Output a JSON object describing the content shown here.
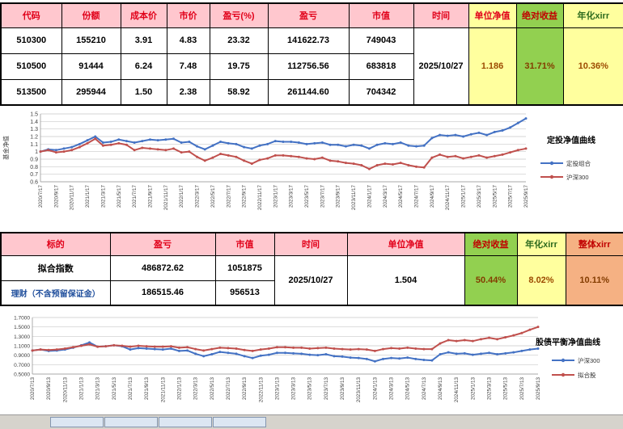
{
  "colors": {
    "header_pink_bg": "#FFC7CE",
    "header_red_text": "#E10019",
    "yellow_bg": "#FFFF9E",
    "green_bg": "#92D050",
    "orange_bg": "#F5B183",
    "series_blue": "#4472C4",
    "series_red": "#C0504D"
  },
  "table1": {
    "headers": [
      "代码",
      "份额",
      "成本价",
      "市价",
      "盈亏(%)",
      "盈亏",
      "市值",
      "时间",
      "单位净值",
      "绝对收益",
      "年化xirr"
    ],
    "rows": [
      {
        "code": "510300",
        "shares": "155210",
        "cost": "3.91",
        "price": "4.83",
        "pl_pct": "23.32",
        "pl": "141622.73",
        "value": "749043"
      },
      {
        "code": "510500",
        "shares": "91444",
        "cost": "6.24",
        "price": "7.48",
        "pl_pct": "19.75",
        "pl": "112756.56",
        "value": "683818"
      },
      {
        "code": "513500",
        "shares": "295944",
        "cost": "1.50",
        "price": "2.38",
        "pl_pct": "58.92",
        "pl": "261144.60",
        "value": "704342"
      }
    ],
    "merged": {
      "time": "2025/10/27",
      "unit_nav": "1.186",
      "abs_return": "31.71%",
      "xirr": "10.36%"
    }
  },
  "table2": {
    "headers": [
      "标的",
      "盈亏",
      "市值",
      "时间",
      "单位净值",
      "绝对收益",
      "年化xirr",
      "整体xirr"
    ],
    "rows": [
      {
        "name": "拟合指数",
        "pl": "486872.62",
        "value": "1051875"
      },
      {
        "name": "理财（不含预留保证金）",
        "pl": "186515.46",
        "value": "956513"
      }
    ],
    "merged": {
      "time": "2025/10/27",
      "unit_nav": "1.504",
      "abs_return": "50.44%",
      "xirr": "8.02%",
      "overall_xirr": "10.11%"
    }
  },
  "chart_data": [
    {
      "type": "line",
      "title": "定投净值曲线",
      "ylabel": "基金净值",
      "ylim": [
        0.6,
        1.5
      ],
      "yticks": [
        "1.5",
        "1.4",
        "1.3",
        "1.2",
        "1.1",
        "1",
        "0.9",
        "0.8",
        "0.7",
        "0.6"
      ],
      "grid": true,
      "legend_position": "right",
      "x_labels": [
        "2020/7/17",
        "2020/9/17",
        "2020/11/17",
        "2021/1/17",
        "2021/3/17",
        "2021/5/17",
        "2021/7/17",
        "2021/9/17",
        "2021/11/17",
        "2022/1/17",
        "2022/3/17",
        "2022/5/17",
        "2022/7/17",
        "2022/9/17",
        "2022/11/17",
        "2023/1/17",
        "2023/3/17",
        "2023/5/17",
        "2023/7/17",
        "2023/9/17",
        "2023/11/17",
        "2024/1/17",
        "2024/3/17",
        "2024/5/17",
        "2024/7/17",
        "2024/9/17",
        "2024/11/17",
        "2025/1/17",
        "2025/3/17",
        "2025/5/17",
        "2025/7/17",
        "2025/9/17"
      ],
      "series": [
        {
          "name": "定投组合",
          "color": "#4472C4",
          "values": [
            1.0,
            1.03,
            1.02,
            1.04,
            1.06,
            1.1,
            1.15,
            1.2,
            1.12,
            1.13,
            1.16,
            1.14,
            1.12,
            1.14,
            1.16,
            1.15,
            1.16,
            1.17,
            1.12,
            1.13,
            1.07,
            1.03,
            1.08,
            1.13,
            1.11,
            1.1,
            1.06,
            1.04,
            1.08,
            1.1,
            1.14,
            1.13,
            1.13,
            1.12,
            1.1,
            1.11,
            1.12,
            1.09,
            1.09,
            1.07,
            1.09,
            1.08,
            1.04,
            1.09,
            1.11,
            1.1,
            1.12,
            1.08,
            1.07,
            1.08,
            1.18,
            1.22,
            1.21,
            1.22,
            1.2,
            1.23,
            1.25,
            1.22,
            1.26,
            1.28,
            1.32,
            1.38,
            1.44
          ]
        },
        {
          "name": "沪深300",
          "color": "#C0504D",
          "values": [
            1.0,
            1.02,
            0.99,
            1.0,
            1.02,
            1.06,
            1.11,
            1.17,
            1.08,
            1.09,
            1.11,
            1.09,
            1.02,
            1.05,
            1.04,
            1.03,
            1.02,
            1.04,
            0.99,
            1.0,
            0.93,
            0.88,
            0.92,
            0.97,
            0.95,
            0.93,
            0.88,
            0.84,
            0.89,
            0.91,
            0.95,
            0.95,
            0.94,
            0.93,
            0.91,
            0.9,
            0.92,
            0.88,
            0.87,
            0.85,
            0.84,
            0.82,
            0.77,
            0.82,
            0.84,
            0.83,
            0.85,
            0.82,
            0.8,
            0.79,
            0.92,
            0.96,
            0.93,
            0.94,
            0.91,
            0.93,
            0.95,
            0.92,
            0.94,
            0.96,
            0.99,
            1.02,
            1.04
          ]
        }
      ]
    },
    {
      "type": "line",
      "title": "股债平衡净值曲线",
      "ylabel": "",
      "ylim": [
        0.5,
        1.7
      ],
      "yticks": [
        "1.7000",
        "1.5000",
        "1.3000",
        "1.1000",
        "0.9000",
        "0.7000",
        "0.5000"
      ],
      "grid": true,
      "legend_position": "right",
      "x_labels": [
        "2020/7/13",
        "2020/9/13",
        "2020/11/13",
        "2021/1/13",
        "2021/3/13",
        "2021/5/13",
        "2021/7/13",
        "2021/9/13",
        "2021/11/13",
        "2022/1/13",
        "2022/3/13",
        "2022/5/13",
        "2022/7/13",
        "2022/9/13",
        "2022/11/13",
        "2023/1/13",
        "2023/3/13",
        "2023/5/13",
        "2023/7/13",
        "2023/9/13",
        "2023/11/13",
        "2024/1/13",
        "2024/3/13",
        "2024/5/13",
        "2024/7/13",
        "2024/9/13",
        "2024/11/13",
        "2025/1/13",
        "2025/3/13",
        "2025/5/13",
        "2025/7/13",
        "2025/9/13"
      ],
      "series": [
        {
          "name": "沪深300",
          "color": "#4472C4",
          "values": [
            1.0,
            1.02,
            0.99,
            1.0,
            1.02,
            1.06,
            1.11,
            1.17,
            1.08,
            1.09,
            1.11,
            1.09,
            1.02,
            1.05,
            1.04,
            1.03,
            1.02,
            1.04,
            0.99,
            1.0,
            0.93,
            0.88,
            0.92,
            0.97,
            0.95,
            0.93,
            0.88,
            0.84,
            0.89,
            0.91,
            0.95,
            0.95,
            0.94,
            0.93,
            0.91,
            0.9,
            0.92,
            0.88,
            0.87,
            0.85,
            0.84,
            0.82,
            0.77,
            0.82,
            0.84,
            0.83,
            0.85,
            0.82,
            0.8,
            0.79,
            0.92,
            0.96,
            0.93,
            0.94,
            0.91,
            0.93,
            0.95,
            0.92,
            0.94,
            0.96,
            0.99,
            1.02,
            1.04
          ]
        },
        {
          "name": "拟合股",
          "color": "#C0504D",
          "values": [
            1.0,
            1.02,
            1.01,
            1.02,
            1.04,
            1.07,
            1.1,
            1.13,
            1.08,
            1.09,
            1.11,
            1.1,
            1.08,
            1.1,
            1.09,
            1.08,
            1.08,
            1.09,
            1.06,
            1.07,
            1.03,
            1.0,
            1.03,
            1.06,
            1.05,
            1.04,
            1.01,
            0.99,
            1.02,
            1.04,
            1.07,
            1.07,
            1.06,
            1.06,
            1.04,
            1.05,
            1.06,
            1.04,
            1.03,
            1.02,
            1.03,
            1.02,
            0.99,
            1.03,
            1.05,
            1.04,
            1.06,
            1.04,
            1.03,
            1.03,
            1.15,
            1.22,
            1.2,
            1.22,
            1.2,
            1.24,
            1.27,
            1.24,
            1.28,
            1.32,
            1.37,
            1.44,
            1.5
          ]
        }
      ]
    }
  ]
}
